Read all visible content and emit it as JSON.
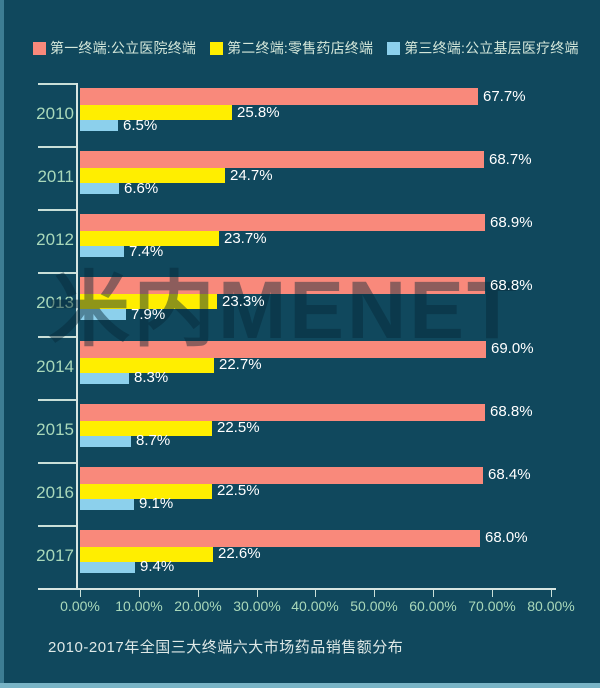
{
  "colors": {
    "background": "#10485d",
    "series1": "#f9897b",
    "series2": "#ffee00",
    "series3": "#8cd0ec",
    "axis_line": "#d8e6e2",
    "tick_line": "#c9dfd8",
    "category_label": "#a9d8ba",
    "axis_label": "#a9d8ba",
    "value_label": "#ffffff",
    "legend_text": "#d4e7da",
    "footer_text": "#dfe9e7"
  },
  "legend": {
    "items": [
      {
        "label": "第一终端:公立医院终端",
        "color": "#f9897b"
      },
      {
        "label": "第二终端:零售药店终端",
        "color": "#ffee00"
      },
      {
        "label": "第三终端:公立基层医疗终端",
        "color": "#8cd0ec"
      }
    ]
  },
  "watermark": {
    "text": "米内MENET"
  },
  "chart_data": {
    "type": "bar",
    "orientation": "horizontal",
    "title": "2010-2017年全国三大终端六大市场药品销售额分布",
    "categories": [
      "2010",
      "2011",
      "2012",
      "2013",
      "2014",
      "2015",
      "2016",
      "2017"
    ],
    "series": [
      {
        "name": "第一终端:公立医院终端",
        "color": "#f9897b",
        "values": [
          67.7,
          68.7,
          68.9,
          68.8,
          69.0,
          68.8,
          68.4,
          68.0
        ]
      },
      {
        "name": "第二终端:零售药店终端",
        "color": "#ffee00",
        "values": [
          25.8,
          24.7,
          23.7,
          23.3,
          22.7,
          22.5,
          22.5,
          22.6
        ]
      },
      {
        "name": "第三终端:公立基层医疗终端",
        "color": "#8cd0ec",
        "values": [
          6.5,
          6.6,
          7.4,
          7.9,
          8.3,
          8.7,
          9.1,
          9.4
        ]
      }
    ],
    "x_axis": {
      "min": 0,
      "max": 80,
      "tick_labels": [
        "0.00%",
        "10.00%",
        "20.00%",
        "30.00%",
        "40.00%",
        "50.00%",
        "60.00%",
        "70.00%",
        "80.00%"
      ]
    },
    "value_suffix": "%",
    "legend_position": "top",
    "grid": false
  }
}
